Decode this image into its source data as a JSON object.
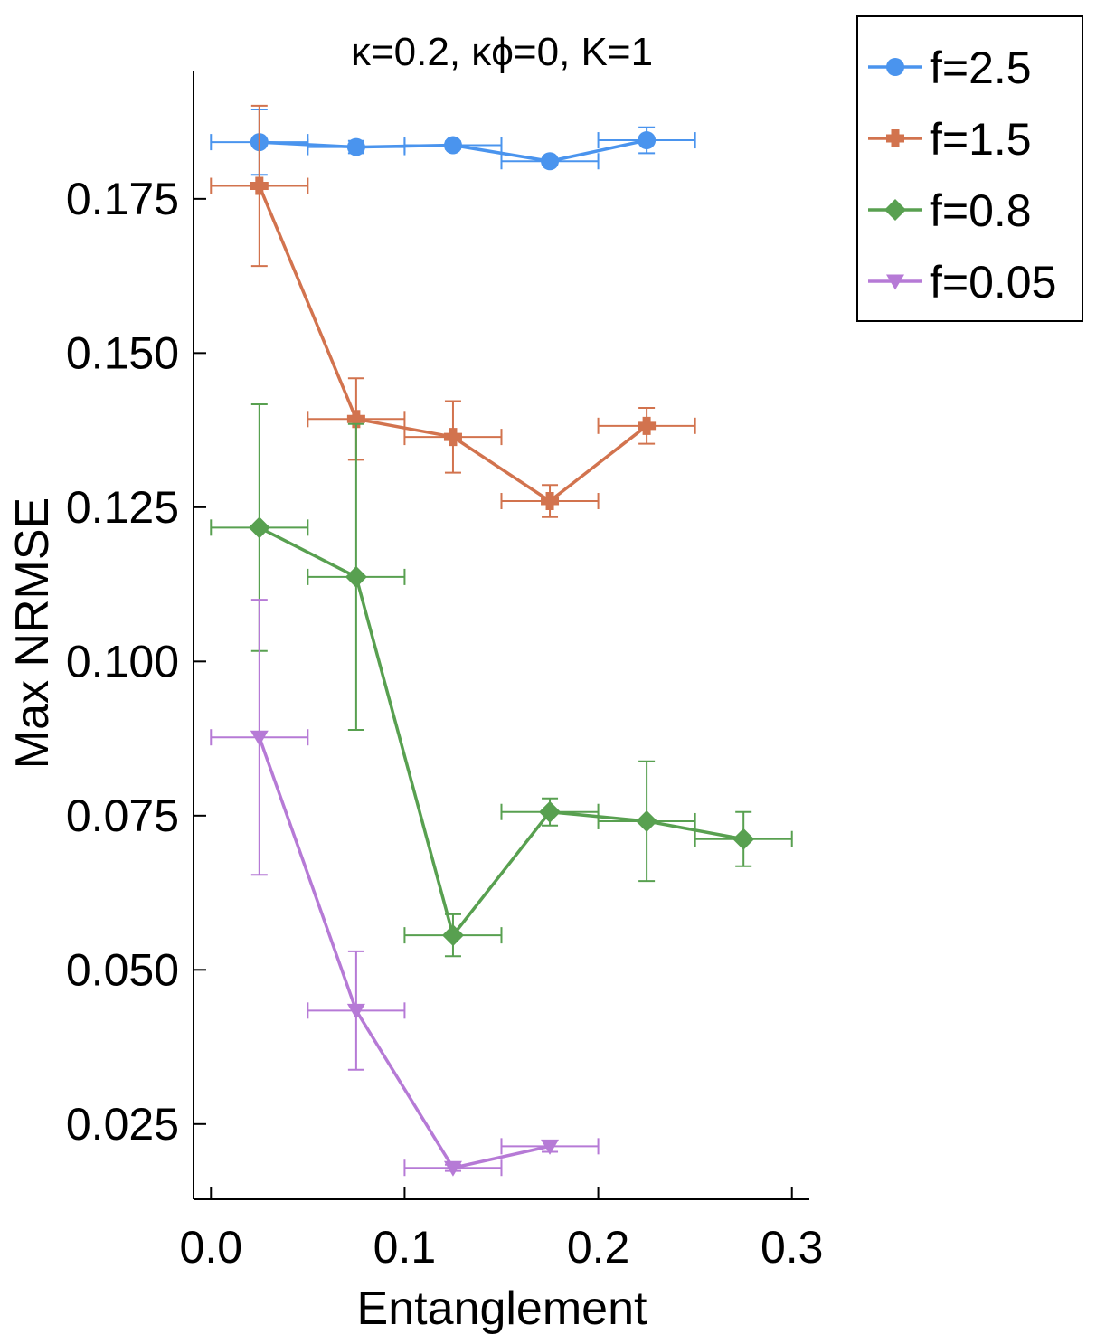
{
  "chart_data": {
    "type": "line",
    "title": "κ=0.2, κϕ=0, K=1",
    "xlabel": "Entanglement",
    "ylabel": "Max NRMSE",
    "xlim": [
      -0.009,
      0.309
    ],
    "ylim": [
      0.0128,
      0.1958
    ],
    "xticks": [
      0.0,
      0.1,
      0.2,
      0.3
    ],
    "xtick_labels": [
      "0.0",
      "0.1",
      "0.2",
      "0.3"
    ],
    "yticks": [
      0.025,
      0.05,
      0.075,
      0.1,
      0.125,
      0.15,
      0.175
    ],
    "ytick_labels": [
      "0.025",
      "0.050",
      "0.075",
      "0.100",
      "0.125",
      "0.150",
      "0.175"
    ],
    "grid": false,
    "legend_position": "outside-top-right",
    "series": [
      {
        "name": "f=2.5",
        "color": "#4a94ee",
        "marker": "circle",
        "x": [
          0.025,
          0.075,
          0.125,
          0.175,
          0.225
        ],
        "y": [
          0.1842,
          0.1834,
          0.1837,
          0.1811,
          0.1845
        ],
        "xerr": [
          0.025,
          0.025,
          0.025,
          0.025,
          0.025
        ],
        "yerr": [
          0.0053,
          0.001,
          0.0006,
          0.0005,
          0.0021
        ]
      },
      {
        "name": "f=1.5",
        "color": "#d2734e",
        "marker": "cross",
        "x": [
          0.025,
          0.075,
          0.125,
          0.175,
          0.225
        ],
        "y": [
          0.1771,
          0.1393,
          0.1364,
          0.126,
          0.1382
        ],
        "xerr": [
          0.025,
          0.025,
          0.025,
          0.025,
          0.025
        ],
        "yerr": [
          0.013,
          0.0066,
          0.0058,
          0.0026,
          0.0029
        ]
      },
      {
        "name": "f=0.8",
        "color": "#58a050",
        "marker": "diamond",
        "x": [
          0.025,
          0.075,
          0.125,
          0.175,
          0.225,
          0.275
        ],
        "y": [
          0.1217,
          0.1137,
          0.0556,
          0.0756,
          0.0741,
          0.0712
        ],
        "xerr": [
          0.025,
          0.025,
          0.025,
          0.025,
          0.025,
          0.025
        ],
        "yerr": [
          0.02,
          0.0248,
          0.0034,
          0.0022,
          0.0097,
          0.0044
        ]
      },
      {
        "name": "f=0.05",
        "color": "#b67ad6",
        "marker": "triangle-down",
        "x": [
          0.025,
          0.075,
          0.125,
          0.175
        ],
        "y": [
          0.0877,
          0.0434,
          0.0179,
          0.0214
        ],
        "xerr": [
          0.025,
          0.025,
          0.025,
          0.025
        ],
        "yerr": [
          0.0223,
          0.0096,
          0.0005,
          0.0009
        ]
      }
    ]
  }
}
